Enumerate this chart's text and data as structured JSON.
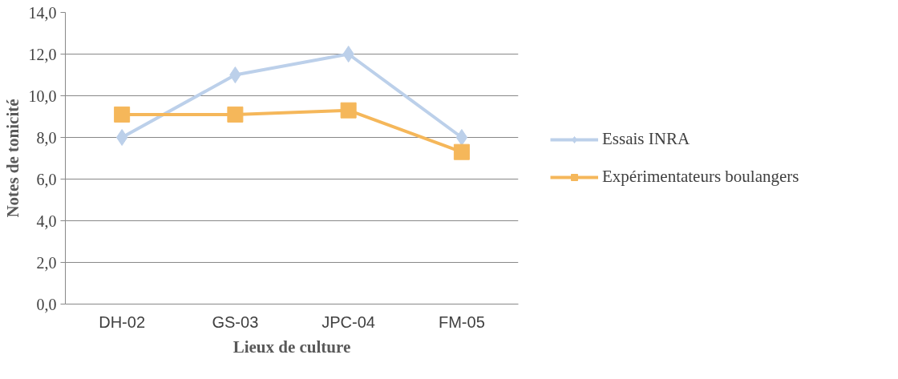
{
  "chart_data": {
    "type": "line",
    "xlabel": "Lieux de culture",
    "ylabel": "Notes de tonicité",
    "categories": [
      "DH-02",
      "GS-03",
      "JPC-04",
      "FM-05"
    ],
    "series": [
      {
        "name": "Essais INRA",
        "color": "#bcd0ea",
        "marker": "diamond",
        "values": [
          8.0,
          11.0,
          12.0,
          8.0
        ]
      },
      {
        "name": "Expérimentateurs boulangers",
        "color": "#f5b75a",
        "marker": "square",
        "values": [
          9.1,
          9.1,
          9.3,
          7.3
        ]
      }
    ],
    "ylim": [
      0,
      14
    ],
    "yticks": [
      {
        "value": 0,
        "label": "0,0"
      },
      {
        "value": 2,
        "label": "2,0"
      },
      {
        "value": 4,
        "label": "4,0"
      },
      {
        "value": 6,
        "label": "6,0"
      },
      {
        "value": 8,
        "label": "8,0"
      },
      {
        "value": 10,
        "label": "10,0"
      },
      {
        "value": 12,
        "label": "12,0"
      },
      {
        "value": 14,
        "label": "14,0"
      }
    ],
    "grid": "y",
    "legend": "right",
    "line_style": "solid"
  }
}
